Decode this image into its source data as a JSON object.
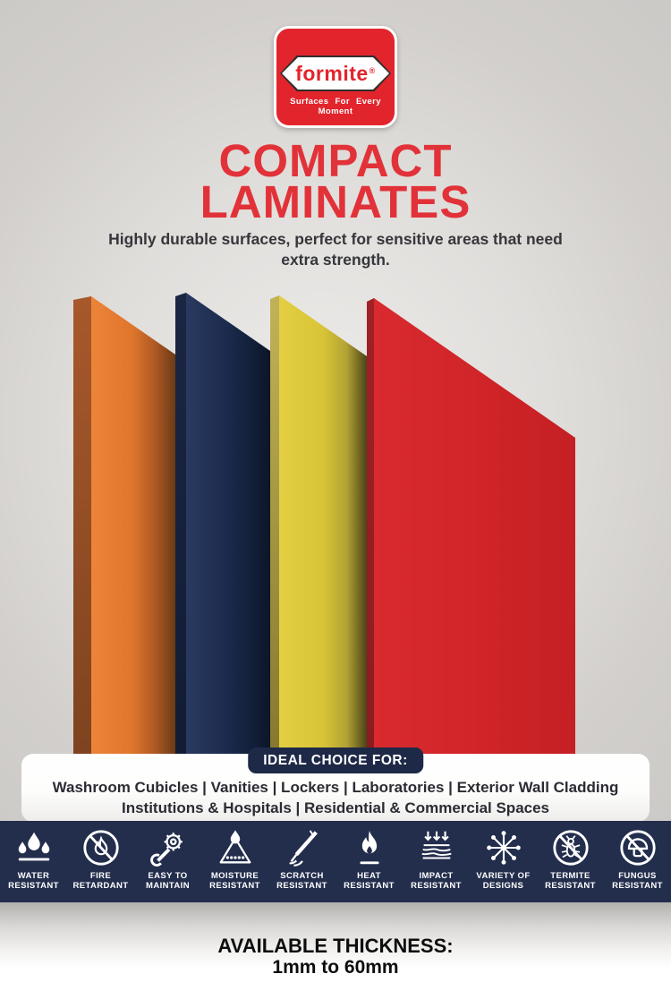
{
  "logo": {
    "brand": "formite",
    "registered_mark": "®",
    "tagline": "Surfaces For Every Moment",
    "bg_color": "#e2242c"
  },
  "header": {
    "title_line1": "COMPACT",
    "title_line2": "LAMINATES",
    "title_color": "#e23239",
    "subtitle_line1": "Highly durable surfaces, perfect for sensitive areas that need",
    "subtitle_line2": "extra strength."
  },
  "panels": [
    {
      "name": "orange",
      "face_colors": [
        "#ec8439",
        "#e0762c",
        "#b05a24",
        "#6b3a17"
      ],
      "spine_colors": [
        "#a8582b",
        "#7c421e"
      ]
    },
    {
      "name": "navy",
      "face_colors": [
        "#293a60",
        "#1c2b4d",
        "#13203c",
        "#0d1628"
      ],
      "spine_colors": [
        "#1b2644",
        "#111b33"
      ]
    },
    {
      "name": "yellow",
      "face_colors": [
        "#e3cf41",
        "#d8c537",
        "#b2a233",
        "#3d3715"
      ],
      "spine_colors": [
        "#c2b257",
        "#83752c"
      ]
    },
    {
      "name": "red",
      "face_colors": [
        "#d92b2f",
        "#d02529",
        "#cb2226",
        "#c42024"
      ],
      "spine_colors": [
        "#a02125",
        "#891c20"
      ]
    }
  ],
  "ideal_banner": {
    "badge_label": "IDEAL CHOICE FOR:",
    "badge_color": "#1e2947",
    "line1": "Washroom Cubicles | Vanities | Lockers | Laboratories | Exterior Wall Cladding",
    "line2": "Institutions & Hospitals | Residential & Commercial Spaces"
  },
  "features": {
    "strip_color": "#232e4d",
    "items": [
      {
        "icon": "water-drops-icon",
        "line1": "WATER",
        "line2": "RESISTANT"
      },
      {
        "icon": "no-fire-icon",
        "line1": "FIRE",
        "line2": "RETARDANT"
      },
      {
        "icon": "wrench-gear-icon",
        "line1": "EASY TO",
        "line2": "MAINTAIN"
      },
      {
        "icon": "moisture-drop-icon",
        "line1": "MOISTURE",
        "line2": "RESISTANT"
      },
      {
        "icon": "scratch-blade-icon",
        "line1": "SCRATCH",
        "line2": "RESISTANT"
      },
      {
        "icon": "flame-icon",
        "line1": "HEAT",
        "line2": "RESISTANT"
      },
      {
        "icon": "impact-arrows-icon",
        "line1": "IMPACT",
        "line2": "RESISTANT"
      },
      {
        "icon": "designs-asterisk-icon",
        "line1": "VARIETY OF",
        "line2": "DESIGNS"
      },
      {
        "icon": "no-termite-icon",
        "line1": "TERMITE",
        "line2": "RESISTANT"
      },
      {
        "icon": "no-fungus-icon",
        "line1": "FUNGUS",
        "line2": "RESISTANT"
      }
    ]
  },
  "footer": {
    "thickness_label": "AVAILABLE THICKNESS:",
    "thickness_value": "1mm to 60mm"
  }
}
